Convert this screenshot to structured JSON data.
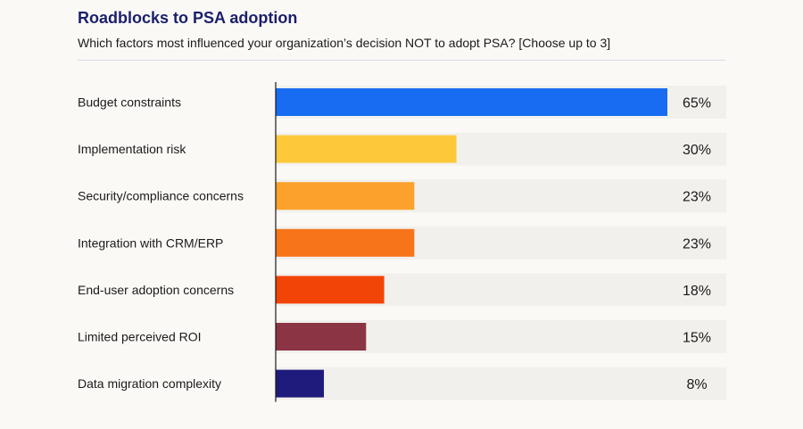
{
  "chart_data": {
    "type": "bar",
    "orientation": "horizontal",
    "title": "Roadblocks to PSA adoption",
    "subtitle": "Which factors most influenced your organization’s decision NOT to adopt PSA? [Choose up to 3]",
    "value_suffix": "%",
    "categories": [
      "Budget constraints",
      "Implementation risk",
      "Security/compliance concerns",
      "Integration with CRM/ERP",
      "End-user adoption concerns",
      "Limited perceived ROI",
      "Data migration complexity"
    ],
    "values": [
      65,
      30,
      23,
      23,
      18,
      15,
      8
    ],
    "bar_colors": [
      "#176cf2",
      "#fdc93a",
      "#fba12c",
      "#f77419",
      "#f34408",
      "#8b3444",
      "#1f1b7c"
    ],
    "track_color": "#f2f0ec",
    "axis_color": "#1a1a1a",
    "xlim": [
      0,
      65
    ],
    "grid": false,
    "legend": "none"
  }
}
